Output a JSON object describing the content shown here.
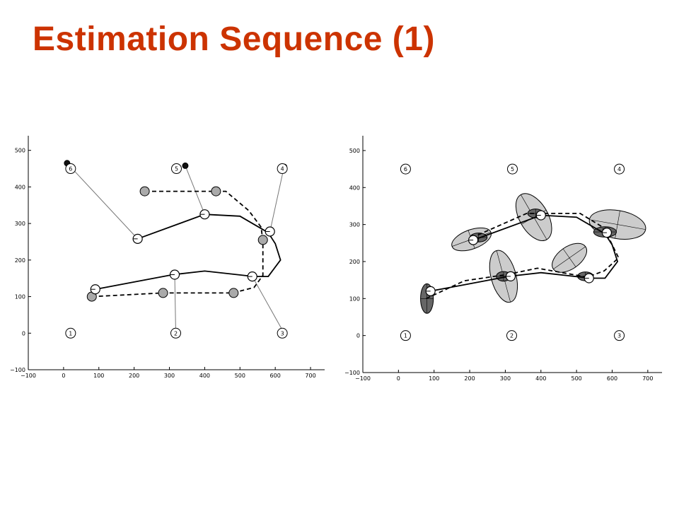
{
  "slide": {
    "title": "Estimation Sequence (1)",
    "title_color": "#cc3300"
  },
  "chart_data": [
    {
      "type": "scatter",
      "title": "",
      "xlabel": "",
      "ylabel": "",
      "xlim": [
        -100,
        740
      ],
      "ylim": [
        -100,
        540
      ],
      "xticks": [
        -100,
        0,
        100,
        200,
        300,
        400,
        500,
        600,
        700
      ],
      "yticks": [
        -100,
        0,
        100,
        200,
        300,
        400,
        500
      ],
      "grid": false,
      "landmarks": [
        {
          "label": "1",
          "x": 20,
          "y": 0
        },
        {
          "label": "2",
          "x": 318,
          "y": 0
        },
        {
          "label": "3",
          "x": 620,
          "y": 0
        },
        {
          "label": "4",
          "x": 620,
          "y": 450
        },
        {
          "label": "5",
          "x": 320,
          "y": 450
        },
        {
          "label": "6",
          "x": 20,
          "y": 450
        }
      ],
      "true_path": [
        [
          90,
          120
        ],
        [
          200,
          140
        ],
        [
          310,
          160
        ],
        [
          400,
          170
        ],
        [
          540,
          155
        ],
        [
          580,
          155
        ],
        [
          615,
          200
        ],
        [
          600,
          245
        ],
        [
          580,
          275
        ],
        [
          500,
          320
        ],
        [
          400,
          325
        ],
        [
          210,
          258
        ]
      ],
      "estimated_path": [
        [
          80,
          100
        ],
        [
          280,
          110
        ],
        [
          480,
          110
        ],
        [
          540,
          125
        ],
        [
          565,
          158
        ],
        [
          565,
          250
        ],
        [
          560,
          290
        ],
        [
          525,
          335
        ],
        [
          460,
          388
        ],
        [
          230,
          388
        ]
      ],
      "true_poses": [
        [
          90,
          120
        ],
        [
          315,
          160
        ],
        [
          535,
          155
        ],
        [
          585,
          278
        ],
        [
          400,
          325
        ],
        [
          210,
          258
        ]
      ],
      "estimated_poses": [
        [
          80,
          100
        ],
        [
          282,
          110
        ],
        [
          482,
          110
        ],
        [
          565,
          255
        ],
        [
          432,
          388
        ],
        [
          230,
          388
        ]
      ],
      "sensed_landmarks": [
        [
          318,
          0
        ],
        [
          625,
          0
        ],
        [
          625,
          455
        ],
        [
          345,
          458
        ],
        [
          10,
          465
        ]
      ],
      "observation_links": [
        [
          [
            315,
            160
          ],
          [
            318,
            0
          ]
        ],
        [
          [
            535,
            155
          ],
          [
            625,
            0
          ]
        ],
        [
          [
            585,
            278
          ],
          [
            625,
            455
          ]
        ],
        [
          [
            400,
            325
          ],
          [
            345,
            458
          ]
        ],
        [
          [
            210,
            258
          ],
          [
            10,
            465
          ]
        ]
      ]
    },
    {
      "type": "scatter",
      "title": "",
      "xlabel": "",
      "ylabel": "",
      "xlim": [
        -100,
        740
      ],
      "ylim": [
        -100,
        540
      ],
      "xticks": [
        -100,
        0,
        100,
        200,
        300,
        400,
        500,
        600,
        700
      ],
      "yticks": [
        -100,
        0,
        100,
        200,
        300,
        400,
        500
      ],
      "grid": false,
      "landmarks": [
        {
          "label": "1",
          "x": 20,
          "y": 0
        },
        {
          "label": "2",
          "x": 318,
          "y": 0
        },
        {
          "label": "3",
          "x": 620,
          "y": 0
        },
        {
          "label": "4",
          "x": 620,
          "y": 450
        },
        {
          "label": "5",
          "x": 320,
          "y": 450
        },
        {
          "label": "6",
          "x": 20,
          "y": 450
        }
      ],
      "true_path": [
        [
          90,
          120
        ],
        [
          200,
          140
        ],
        [
          310,
          160
        ],
        [
          400,
          170
        ],
        [
          540,
          155
        ],
        [
          580,
          155
        ],
        [
          615,
          200
        ],
        [
          600,
          245
        ],
        [
          580,
          275
        ],
        [
          500,
          320
        ],
        [
          400,
          325
        ],
        [
          210,
          258
        ]
      ],
      "estimated_path": [
        [
          78,
          100
        ],
        [
          185,
          148
        ],
        [
          305,
          165
        ],
        [
          390,
          182
        ],
        [
          530,
          158
        ],
        [
          578,
          175
        ],
        [
          618,
          210
        ],
        [
          590,
          265
        ],
        [
          570,
          295
        ],
        [
          510,
          330
        ],
        [
          360,
          330
        ],
        [
          200,
          262
        ]
      ],
      "true_poses": [
        [
          90,
          120
        ],
        [
          315,
          160
        ],
        [
          535,
          155
        ],
        [
          585,
          278
        ],
        [
          400,
          325
        ],
        [
          210,
          258
        ]
      ],
      "estimated_poses": [
        [
          80,
          100
        ],
        [
          295,
          160
        ],
        [
          525,
          160
        ],
        [
          570,
          280
        ],
        [
          385,
          330
        ],
        [
          228,
          265
        ]
      ],
      "uncertainty_ellipses": [
        {
          "x": 80,
          "y": 100,
          "rx": 18,
          "ry": 40,
          "angle": 0,
          "fill": "#666666"
        },
        {
          "x": 295,
          "y": 160,
          "rx": 35,
          "ry": 72,
          "angle": -15,
          "fill": "#cccccc"
        },
        {
          "x": 295,
          "y": 160,
          "rx": 20,
          "ry": 13,
          "angle": 0,
          "fill": "#666666"
        },
        {
          "x": 380,
          "y": 320,
          "rx": 40,
          "ry": 70,
          "angle": -30,
          "fill": "#cccccc"
        },
        {
          "x": 385,
          "y": 330,
          "rx": 22,
          "ry": 12,
          "angle": 0,
          "fill": "#666666"
        },
        {
          "x": 205,
          "y": 260,
          "rx": 58,
          "ry": 26,
          "angle": -20,
          "fill": "#cccccc"
        },
        {
          "x": 225,
          "y": 265,
          "rx": 24,
          "ry": 12,
          "angle": 0,
          "fill": "#666666"
        },
        {
          "x": 615,
          "y": 300,
          "rx": 80,
          "ry": 38,
          "angle": 10,
          "fill": "#cccccc"
        },
        {
          "x": 580,
          "y": 280,
          "rx": 32,
          "ry": 14,
          "angle": 0,
          "fill": "#666666"
        },
        {
          "x": 480,
          "y": 210,
          "rx": 55,
          "ry": 30,
          "angle": -35,
          "fill": "#cccccc"
        },
        {
          "x": 525,
          "y": 160,
          "rx": 22,
          "ry": 12,
          "angle": 0,
          "fill": "#666666"
        }
      ]
    }
  ]
}
